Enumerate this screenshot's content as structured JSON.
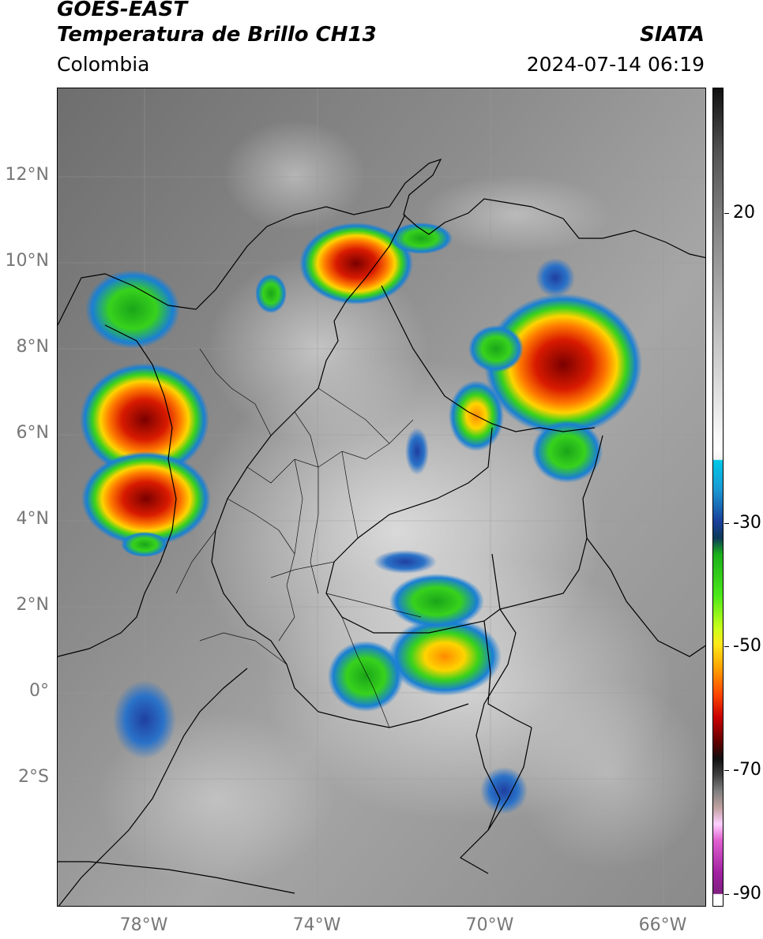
{
  "header": {
    "satellite": "GOES-EAST",
    "product": "Temperatura de Brillo CH13",
    "region": "Colombia",
    "agency": "SIATA",
    "datetime": "2024-07-14 06:19"
  },
  "map": {
    "lat_ticks": [
      "12°N",
      "10°N",
      "8°N",
      "6°N",
      "4°N",
      "2°N",
      "0°",
      "2°S"
    ],
    "lon_ticks": [
      "78°W",
      "74°W",
      "70°W",
      "66°W"
    ]
  },
  "colorbar": {
    "ticks": [
      "20",
      "-30",
      "-50",
      "-70",
      "-90"
    ]
  },
  "colors": {
    "frame": "#000000",
    "grid": "#888888",
    "tick_label": "#777777"
  }
}
